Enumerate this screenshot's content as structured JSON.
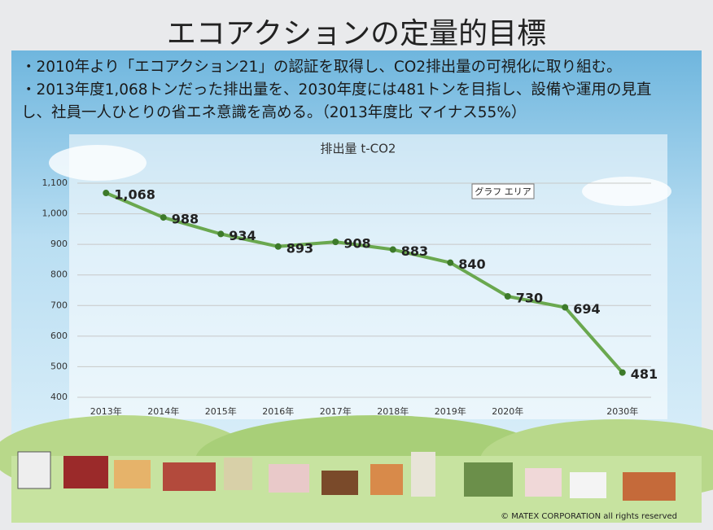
{
  "slide": {
    "heading": "エコアクションの定量的目標",
    "bullets": [
      "・2010年より「エコアクション21」の認証を取得し、CO2排出量の可視化に取り組む。",
      "・2013年度1,068トンだった排出量を、2030年度には481トンを目指し、設備や運用の見直し、社員一人ひとりの省エネ意識を高める。（2013年度比 マイナス55%）"
    ],
    "copyright": "© MATEX CORPORATION all rights reserved",
    "tooltip": "グラフ エリア"
  },
  "chart_data": {
    "type": "line",
    "title": "排出量 t-CO2",
    "categories": [
      "2013年",
      "2014年",
      "2015年",
      "2016年",
      "2017年",
      "2018年",
      "2019年",
      "2020年",
      null,
      "2030年"
    ],
    "series": [
      {
        "name": "排出量",
        "color": "#6aa84f",
        "values": [
          1068,
          988,
          934,
          893,
          908,
          883,
          840,
          730,
          694,
          481
        ],
        "value_labels": [
          "1,068",
          "988",
          "934",
          "893",
          "908",
          "883",
          "840",
          "730",
          "694",
          "481"
        ]
      }
    ],
    "ylim": [
      400,
      1100
    ],
    "yticks": [
      400,
      500,
      600,
      700,
      800,
      900,
      {
        "value": 1000,
        "label": "1,000"
      },
      {
        "value": 1100,
        "label": "1,100"
      }
    ],
    "grid": true
  }
}
